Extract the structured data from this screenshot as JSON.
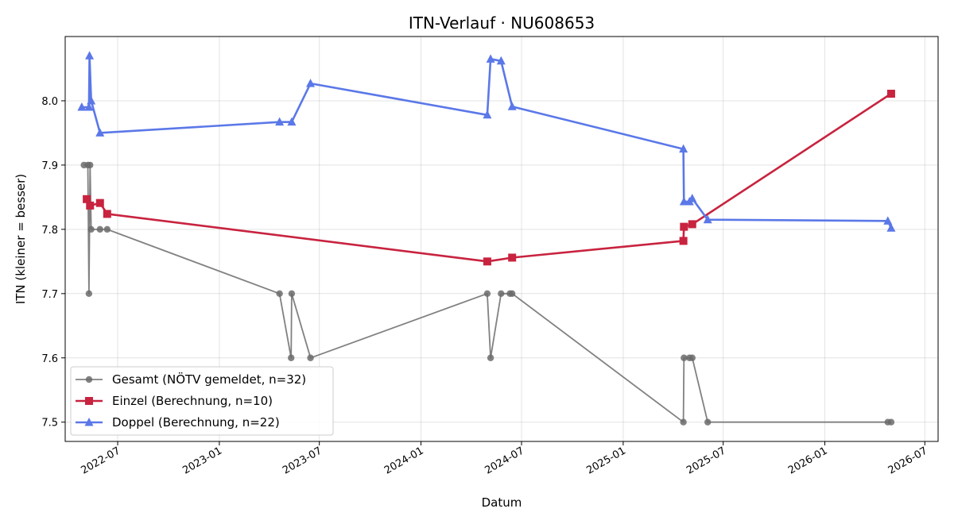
{
  "chart_data": {
    "type": "line",
    "title": "ITN-Verlauf · NU608653",
    "xlabel": "Datum",
    "ylabel": "ITN  (kleiner = besser)",
    "ylim": [
      7.47,
      8.1
    ],
    "xlim": [
      "2022-03-28",
      "2026-07-25"
    ],
    "grid": true,
    "legend_position": "lower-left",
    "x_ticks": [
      "2022-07-01",
      "2023-01-01",
      "2023-07-01",
      "2024-01-01",
      "2024-07-01",
      "2025-01-01",
      "2025-07-01",
      "2026-01-01",
      "2026-07-01"
    ],
    "x_tick_labels": [
      "2022-07",
      "2023-01",
      "2023-07",
      "2024-01",
      "2024-07",
      "2025-01",
      "2025-07",
      "2026-01",
      "2026-07"
    ],
    "y_ticks": [
      7.5,
      7.6,
      7.7,
      7.8,
      7.9,
      8.0
    ],
    "y_tick_labels": [
      "7.5",
      "7.6",
      "7.7",
      "7.8",
      "7.9",
      "8.0"
    ],
    "series": [
      {
        "name": "Gesamt (NÖTV gemeldet, n=32)",
        "color": "#6b6b6b",
        "marker": "circle",
        "points": [
          {
            "x": "2022-05-01",
            "y": 7.9
          },
          {
            "x": "2022-05-08",
            "y": 7.9
          },
          {
            "x": "2022-05-10",
            "y": 7.7
          },
          {
            "x": "2022-05-12",
            "y": 7.9
          },
          {
            "x": "2022-05-14",
            "y": 7.8
          },
          {
            "x": "2022-05-30",
            "y": 7.8
          },
          {
            "x": "2022-06-12",
            "y": 7.8
          },
          {
            "x": "2023-04-20",
            "y": 7.7
          },
          {
            "x": "2023-05-11",
            "y": 7.6
          },
          {
            "x": "2023-05-12",
            "y": 7.7
          },
          {
            "x": "2023-06-15",
            "y": 7.6
          },
          {
            "x": "2024-04-30",
            "y": 7.7
          },
          {
            "x": "2024-05-06",
            "y": 7.6
          },
          {
            "x": "2024-05-25",
            "y": 7.7
          },
          {
            "x": "2024-06-10",
            "y": 7.7
          },
          {
            "x": "2024-06-14",
            "y": 7.7
          },
          {
            "x": "2025-04-20",
            "y": 7.5
          },
          {
            "x": "2025-04-21",
            "y": 7.6
          },
          {
            "x": "2025-05-01",
            "y": 7.6
          },
          {
            "x": "2025-05-06",
            "y": 7.6
          },
          {
            "x": "2025-06-03",
            "y": 7.5
          },
          {
            "x": "2026-04-25",
            "y": 7.5
          },
          {
            "x": "2026-05-01",
            "y": 7.5
          }
        ]
      },
      {
        "name": "Einzel (Berechnung, n=10)",
        "color": "#c8233f",
        "marker": "square",
        "points": [
          {
            "x": "2022-05-06",
            "y": 7.847
          },
          {
            "x": "2022-05-12",
            "y": 7.837
          },
          {
            "x": "2022-05-30",
            "y": 7.841
          },
          {
            "x": "2022-06-12",
            "y": 7.824
          },
          {
            "x": "2024-04-30",
            "y": 7.75
          },
          {
            "x": "2024-06-14",
            "y": 7.756
          },
          {
            "x": "2025-04-20",
            "y": 7.782
          },
          {
            "x": "2025-04-21",
            "y": 7.804
          },
          {
            "x": "2025-05-06",
            "y": 7.808
          },
          {
            "x": "2026-05-01",
            "y": 8.011
          }
        ]
      },
      {
        "name": "Doppel (Berechnung, n=22)",
        "color": "#5b78e8",
        "marker": "triangle",
        "points": [
          {
            "x": "2022-04-27",
            "y": 7.99
          },
          {
            "x": "2022-05-10",
            "y": 7.99
          },
          {
            "x": "2022-05-11",
            "y": 8.07
          },
          {
            "x": "2022-05-14",
            "y": 8.0
          },
          {
            "x": "2022-05-30",
            "y": 7.95
          },
          {
            "x": "2023-04-20",
            "y": 7.967
          },
          {
            "x": "2023-05-12",
            "y": 7.967
          },
          {
            "x": "2023-06-15",
            "y": 8.027
          },
          {
            "x": "2024-04-30",
            "y": 7.978
          },
          {
            "x": "2024-05-06",
            "y": 8.065
          },
          {
            "x": "2024-05-25",
            "y": 8.062
          },
          {
            "x": "2024-06-14",
            "y": 7.991
          },
          {
            "x": "2025-04-20",
            "y": 7.925
          },
          {
            "x": "2025-04-21",
            "y": 7.843
          },
          {
            "x": "2025-05-01",
            "y": 7.843
          },
          {
            "x": "2025-05-06",
            "y": 7.848
          },
          {
            "x": "2025-06-03",
            "y": 7.815
          },
          {
            "x": "2026-04-25",
            "y": 7.813
          },
          {
            "x": "2026-05-01",
            "y": 7.802
          }
        ]
      }
    ]
  }
}
